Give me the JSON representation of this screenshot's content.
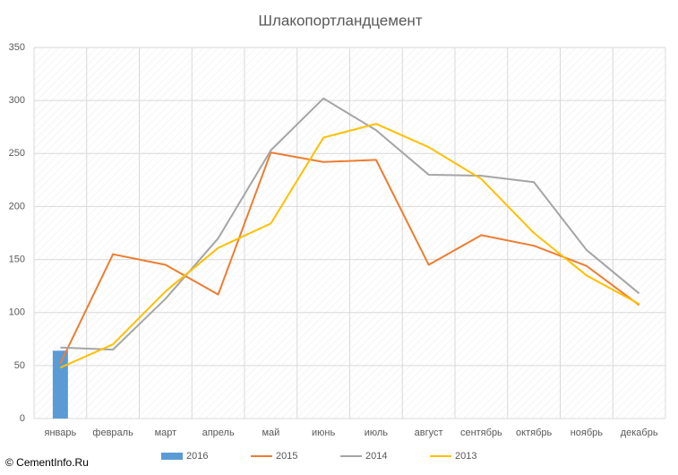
{
  "chart_data": {
    "type": "bar_line",
    "title": "Шлакопортландцемент",
    "watermark": "© CementInfo.Ru",
    "categories": [
      "январь",
      "февраль",
      "март",
      "апрель",
      "май",
      "июнь",
      "июль",
      "август",
      "сентябрь",
      "октябрь",
      "ноябрь",
      "декабрь"
    ],
    "series": [
      {
        "name": "2016",
        "type": "bar",
        "color": "#5b9bd5",
        "values": [
          64,
          null,
          null,
          null,
          null,
          null,
          null,
          null,
          null,
          null,
          null,
          null
        ]
      },
      {
        "name": "2015",
        "type": "line",
        "color": "#ed7d31",
        "values": [
          52,
          155,
          145,
          117,
          251,
          242,
          244,
          145,
          173,
          163,
          144,
          107
        ]
      },
      {
        "name": "2014",
        "type": "line",
        "color": "#a5a5a5",
        "values": [
          67,
          65,
          113,
          170,
          253,
          302,
          272,
          230,
          229,
          223,
          159,
          118
        ]
      },
      {
        "name": "2013",
        "type": "line",
        "color": "#ffc000",
        "values": [
          48,
          70,
          120,
          161,
          184,
          265,
          278,
          256,
          226,
          175,
          135,
          108
        ]
      }
    ],
    "ylim": [
      0,
      350
    ],
    "yticks": [
      0,
      50,
      100,
      150,
      200,
      250,
      300,
      350
    ],
    "grid": true,
    "legend": "bottom"
  }
}
